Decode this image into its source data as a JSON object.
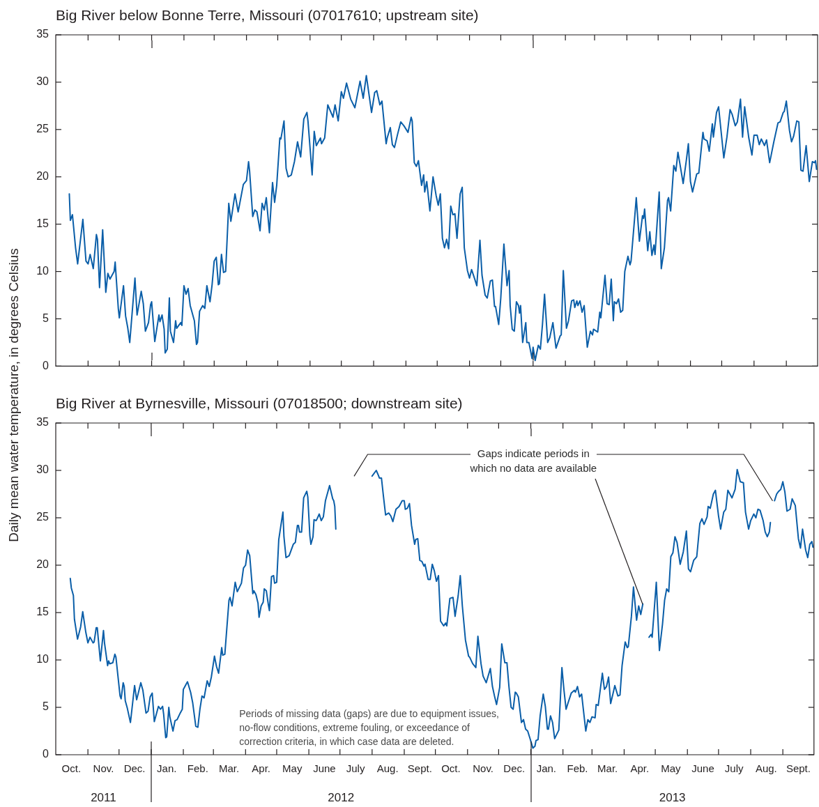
{
  "chart_data": [
    {
      "type": "line",
      "title": "Big River below Bonne Terre, Missouri (07017610; upstream site)",
      "ylabel": "Daily mean water temperature, in degrees Celsius",
      "color": "#0a5ea8",
      "tick_labels": "y",
      "xlim": [
        "2011-10-01",
        "2013-10-01"
      ],
      "xticks": [
        {
          "value": "2011-11-01",
          "label": null
        },
        {
          "value": "2011-12-01",
          "label": null
        },
        {
          "value": "2012-01-01",
          "label": null
        },
        {
          "value": "2012-02-01",
          "label": null
        },
        {
          "value": "2012-03-01",
          "label": null
        },
        {
          "value": "2012-04-01",
          "label": null
        },
        {
          "value": "2012-05-01",
          "label": null
        },
        {
          "value": "2012-06-01",
          "label": null
        },
        {
          "value": "2012-07-01",
          "label": null
        },
        {
          "value": "2012-08-01",
          "label": null
        },
        {
          "value": "2012-09-01",
          "label": null
        },
        {
          "value": "2012-10-01",
          "label": null
        },
        {
          "value": "2012-11-01",
          "label": null
        },
        {
          "value": "2012-12-01",
          "label": null
        },
        {
          "value": "2013-01-01",
          "label": null
        },
        {
          "value": "2013-02-01",
          "label": null
        },
        {
          "value": "2013-03-01",
          "label": null
        },
        {
          "value": "2013-04-01",
          "label": null
        },
        {
          "value": "2013-05-01",
          "label": null
        },
        {
          "value": "2013-06-01",
          "label": null
        },
        {
          "value": "2013-07-01",
          "label": null
        },
        {
          "value": "2013-08-01",
          "label": null
        },
        {
          "value": "2013-09-01",
          "label": null
        }
      ],
      "ylim": [
        0,
        35
      ],
      "yticks": [
        0,
        5,
        10,
        15,
        20,
        25,
        30,
        35
      ],
      "x": [
        "2011-10-14",
        "2011-10-15",
        "2011-10-17",
        "2011-10-20",
        "2011-10-22",
        "2011-10-27",
        "2011-10-30",
        "2011-11-01",
        "2011-11-03",
        "2011-11-06",
        "2011-11-09",
        "2011-11-10",
        "2011-11-12",
        "2011-11-15",
        "2011-11-18",
        "2011-11-20",
        "2011-11-22",
        "2011-11-26",
        "2011-11-27",
        "2011-11-30",
        "2011-12-01",
        "2011-12-05",
        "2011-12-07",
        "2011-12-09",
        "2011-12-11",
        "2011-12-16",
        "2011-12-18",
        "2011-12-22",
        "2011-12-24",
        "2011-12-26",
        "2011-12-29",
        "2011-12-31",
        "2012-01-01",
        "2012-01-04",
        "2012-01-08",
        "2012-01-09",
        "2012-01-11",
        "2012-01-13",
        "2012-01-14",
        "2012-01-16",
        "2012-01-18",
        "2012-01-19",
        "2012-01-22",
        "2012-01-24",
        "2012-01-25",
        "2012-01-29",
        "2012-01-30",
        "2012-02-01",
        "2012-02-03",
        "2012-02-05",
        "2012-02-07",
        "2012-02-11",
        "2012-02-13",
        "2012-02-14",
        "2012-02-16",
        "2012-02-19",
        "2012-02-21",
        "2012-02-23",
        "2012-02-26",
        "2012-02-28",
        "2012-03-01",
        "2012-03-03",
        "2012-03-05",
        "2012-03-06",
        "2012-03-08",
        "2012-03-10",
        "2012-03-12",
        "2012-03-15",
        "2012-03-17",
        "2012-03-21",
        "2012-03-24",
        "2012-03-29",
        "2012-04-01",
        "2012-04-03",
        "2012-04-04",
        "2012-04-07",
        "2012-04-09",
        "2012-04-11",
        "2012-04-14",
        "2012-04-16",
        "2012-04-18",
        "2012-04-20",
        "2012-04-23",
        "2012-04-26",
        "2012-04-28",
        "2012-04-30",
        "2012-05-03",
        "2012-05-04",
        "2012-05-07",
        "2012-05-09",
        "2012-05-11",
        "2012-05-14",
        "2012-05-17",
        "2012-05-20",
        "2012-05-23",
        "2012-05-26",
        "2012-05-29",
        "2012-05-30",
        "2012-06-03",
        "2012-06-05",
        "2012-06-07",
        "2012-06-11",
        "2012-06-12",
        "2012-06-15",
        "2012-06-18",
        "2012-06-23",
        "2012-06-25",
        "2012-06-28",
        "2012-07-01",
        "2012-07-03",
        "2012-07-06",
        "2012-07-10",
        "2012-07-14",
        "2012-07-19",
        "2012-07-22",
        "2012-07-25",
        "2012-07-30",
        "2012-08-02",
        "2012-08-04",
        "2012-08-07",
        "2012-08-09",
        "2012-08-13",
        "2012-08-14",
        "2012-08-17",
        "2012-08-19",
        "2012-08-21",
        "2012-08-24",
        "2012-08-27",
        "2012-08-30",
        "2012-09-03",
        "2012-09-06",
        "2012-09-07",
        "2012-09-09",
        "2012-09-11",
        "2012-09-13",
        "2012-09-16",
        "2012-09-18",
        "2012-09-19",
        "2012-09-21",
        "2012-09-24",
        "2012-09-27",
        "2012-09-30",
        "2012-10-02",
        "2012-10-04",
        "2012-10-06",
        "2012-10-08",
        "2012-10-10",
        "2012-10-12",
        "2012-10-14",
        "2012-10-16",
        "2012-10-18",
        "2012-10-20",
        "2012-10-23",
        "2012-10-25",
        "2012-10-27",
        "2012-10-30",
        "2012-11-01",
        "2012-11-03",
        "2012-11-06",
        "2012-11-08",
        "2012-11-11",
        "2012-11-13",
        "2012-11-16",
        "2012-11-18",
        "2012-11-21",
        "2012-11-23",
        "2012-11-25",
        "2012-11-26",
        "2012-11-29",
        "2012-12-01",
        "2012-12-04",
        "2012-12-07",
        "2012-12-09",
        "2012-12-10",
        "2012-12-12",
        "2012-12-14",
        "2012-12-16",
        "2012-12-18",
        "2012-12-19",
        "2012-12-20",
        "2012-12-22",
        "2012-12-25",
        "2012-12-26",
        "2012-12-28",
        "2012-12-31",
        "2013-01-01",
        "2013-01-03",
        "2013-01-06",
        "2013-01-08",
        "2013-01-10",
        "2013-01-12",
        "2013-01-15",
        "2013-01-17",
        "2013-01-20",
        "2013-01-23",
        "2013-01-27",
        "2013-01-28",
        "2013-01-30",
        "2013-02-02",
        "2013-02-04",
        "2013-02-07",
        "2013-02-09",
        "2013-02-10",
        "2013-02-12",
        "2013-02-13",
        "2013-02-15",
        "2013-02-17",
        "2013-02-19",
        "2013-02-22",
        "2013-02-25",
        "2013-02-27",
        "2013-02-28",
        "2013-03-04",
        "2013-03-06",
        "2013-03-07",
        "2013-03-11",
        "2013-03-13",
        "2013-03-15",
        "2013-03-17",
        "2013-03-19",
        "2013-03-20",
        "2013-03-22",
        "2013-03-24",
        "2013-03-26",
        "2013-03-28",
        "2013-03-30",
        "2013-04-02",
        "2013-04-04",
        "2013-04-05",
        "2013-04-09",
        "2013-04-10",
        "2013-04-13",
        "2013-04-16",
        "2013-04-17",
        "2013-04-18",
        "2013-04-21",
        "2013-04-23",
        "2013-04-25",
        "2013-04-27",
        "2013-04-28",
        "2013-05-02",
        "2013-05-04",
        "2013-05-07",
        "2013-05-10",
        "2013-05-11",
        "2013-05-13",
        "2013-05-16",
        "2013-05-18",
        "2013-05-20",
        "2013-05-22",
        "2013-05-25",
        "2013-05-28",
        "2013-05-30",
        "2013-06-01",
        "2013-06-03",
        "2013-06-07",
        "2013-06-09",
        "2013-06-13",
        "2013-06-14",
        "2013-06-17",
        "2013-06-19",
        "2013-06-22",
        "2013-06-23",
        "2013-06-26",
        "2013-06-28",
        "2013-07-03",
        "2013-07-06",
        "2013-07-09",
        "2013-07-11",
        "2013-07-14",
        "2013-07-16",
        "2013-07-19",
        "2013-07-21",
        "2013-07-23",
        "2013-07-27",
        "2013-07-30",
        "2013-08-01",
        "2013-08-04",
        "2013-08-06",
        "2013-08-08",
        "2013-08-11",
        "2013-08-13",
        "2013-08-16",
        "2013-08-20",
        "2013-08-24",
        "2013-08-26",
        "2013-08-29",
        "2013-08-30",
        "2013-09-01",
        "2013-09-04",
        "2013-09-06",
        "2013-09-08",
        "2013-09-11",
        "2013-09-13",
        "2013-09-15",
        "2013-09-17",
        "2013-09-20",
        "2013-09-23",
        "2013-09-26",
        "2013-09-28",
        "2013-09-29",
        "2013-09-30"
      ],
      "values": [
        18.2,
        15.4,
        16,
        12.5,
        10.8,
        15.5,
        11.1,
        10.8,
        11.8,
        10.3,
        13.9,
        13.4,
        8.3,
        14.4,
        7.8,
        9.8,
        9.2,
        10,
        11,
        6.1,
        5.1,
        8.5,
        5.3,
        4.1,
        2.5,
        9.3,
        5.4,
        7.9,
        6.6,
        3.7,
        4.6,
        6.5,
        6.8,
        2.6,
        5.4,
        4.7,
        5.4,
        3.9,
        1.4,
        1.8,
        7.2,
        3.7,
        2.5,
        4.8,
        4,
        4.6,
        4.3,
        8.5,
        7.6,
        8.2,
        6.4,
        4.8,
        2.3,
        2.5,
        5.8,
        6.4,
        6.1,
        8.5,
        6.8,
        8.6,
        11.1,
        11.5,
        8.6,
        8.7,
        11.8,
        9.9,
        10,
        17.2,
        15.3,
        18.2,
        16.3,
        19.2,
        19.6,
        21.6,
        20.6,
        15.8,
        16.5,
        16.3,
        14.3,
        17.2,
        16.5,
        17.8,
        14.1,
        19.4,
        17.3,
        19.1,
        24.1,
        24,
        25.9,
        20.9,
        20,
        20.2,
        21.6,
        23.7,
        22.1,
        26.1,
        26.8,
        25.9,
        20.2,
        24.8,
        23.3,
        24.1,
        23.5,
        24.1,
        27.6,
        26.3,
        27.6,
        25.9,
        29,
        28.3,
        29.9,
        28.2,
        27.3,
        30.1,
        28.3,
        30.7,
        26.8,
        28.9,
        29.1,
        27.6,
        28,
        23.5,
        24.1,
        25.2,
        23.4,
        23.1,
        24.5,
        25.8,
        25.4,
        24.7,
        26.3,
        25.9,
        21.5,
        21.1,
        21.7,
        19.1,
        20.2,
        18.4,
        19.5,
        16.4,
        20,
        18,
        17,
        18.2,
        13.5,
        12.5,
        13.4,
        12.4,
        16.9,
        16,
        16.1,
        13.5,
        18.2,
        18.9,
        12.5,
        10.1,
        9.3,
        10.2,
        9.2,
        8.5,
        13.3,
        9.6,
        7.5,
        7.2,
        9,
        9.1,
        6.3,
        6.3,
        4.4,
        7.2,
        12.9,
        8.5,
        10.1,
        6.4,
        3.9,
        3.7,
        6.8,
        6.4,
        5.6,
        6.4,
        2.5,
        4.6,
        2.5,
        2.5,
        0.8,
        2,
        0.6,
        2.2,
        1.8,
        4.4,
        7.6,
        2.5,
        3,
        4.6,
        1.9,
        3.2,
        3.3,
        10.1,
        4,
        4.8,
        6.9,
        7,
        6.2,
        6.9,
        6.4,
        6.9,
        5.7,
        6.4,
        2,
        3.7,
        3.3,
        3.9,
        3.6,
        5.7,
        5.1,
        9.6,
        6.6,
        6.5,
        9.2,
        4.8,
        6.8,
        6.6,
        7.1,
        5.7,
        5.9,
        10,
        11.6,
        10.7,
        11.1,
        16.4,
        17.8,
        13.2,
        15.9,
        15.6,
        16.6,
        12.2,
        14.2,
        11.7,
        12.8,
        11.8,
        18.4,
        10.3,
        12.5,
        17.5,
        17.8,
        16.4,
        21.2,
        20.6,
        22.6,
        21.3,
        19.3,
        21.7,
        23.5,
        19.5,
        18.4,
        20.3,
        20.4,
        24.7,
        24,
        23.8,
        22.7,
        25.6,
        24.2,
        26.8,
        27.4,
        22,
        24.2,
        27.1,
        26.6,
        25.4,
        25.8,
        28.2,
        24.2,
        27.4,
        24.1,
        22.3,
        24.4,
        24.4,
        23.4,
        24,
        23.3,
        23.9,
        21.5,
        23.7,
        25.7,
        25.8,
        26.8,
        26.9,
        28,
        24.9,
        23.7,
        24.3,
        25.9,
        25.8,
        20.7,
        20.6,
        23.3,
        19.5,
        21.6,
        21.5,
        21.7,
        20.8
      ]
    },
    {
      "type": "line",
      "title": "Big River at Byrnesville, Missouri (07018500; downstream site)",
      "color": "#0a5ea8",
      "xlim": [
        "2011-10-01",
        "2013-10-01"
      ],
      "xticks": [
        {
          "value": "2011-10-16",
          "label": "Oct."
        },
        {
          "value": "2011-11-01",
          "label": null
        },
        {
          "value": "2011-11-16",
          "label": "Nov."
        },
        {
          "value": "2011-12-01",
          "label": null
        },
        {
          "value": "2011-12-16",
          "label": "Dec."
        },
        {
          "value": "2012-01-01",
          "label": null
        },
        {
          "value": "2012-01-16",
          "label": "Jan."
        },
        {
          "value": "2012-02-01",
          "label": null
        },
        {
          "value": "2012-02-15",
          "label": "Feb."
        },
        {
          "value": "2012-03-01",
          "label": null
        },
        {
          "value": "2012-03-16",
          "label": "Mar."
        },
        {
          "value": "2012-04-01",
          "label": null
        },
        {
          "value": "2012-04-16",
          "label": "Apr."
        },
        {
          "value": "2012-05-01",
          "label": null
        },
        {
          "value": "2012-05-16",
          "label": "May"
        },
        {
          "value": "2012-06-01",
          "label": null
        },
        {
          "value": "2012-06-16",
          "label": "June"
        },
        {
          "value": "2012-07-01",
          "label": null
        },
        {
          "value": "2012-07-16",
          "label": "July"
        },
        {
          "value": "2012-08-01",
          "label": null
        },
        {
          "value": "2012-08-16",
          "label": "Aug."
        },
        {
          "value": "2012-09-01",
          "label": null
        },
        {
          "value": "2012-09-16",
          "label": "Sept."
        },
        {
          "value": "2012-10-01",
          "label": null
        },
        {
          "value": "2012-10-16",
          "label": "Oct."
        },
        {
          "value": "2012-11-01",
          "label": null
        },
        {
          "value": "2012-11-16",
          "label": "Nov."
        },
        {
          "value": "2012-12-01",
          "label": null
        },
        {
          "value": "2012-12-16",
          "label": "Dec."
        },
        {
          "value": "2013-01-01",
          "label": null
        },
        {
          "value": "2013-01-16",
          "label": "Jan."
        },
        {
          "value": "2013-02-01",
          "label": null
        },
        {
          "value": "2013-02-15",
          "label": "Feb."
        },
        {
          "value": "2013-03-01",
          "label": null
        },
        {
          "value": "2013-03-16",
          "label": "Mar."
        },
        {
          "value": "2013-04-01",
          "label": null
        },
        {
          "value": "2013-04-16",
          "label": "Apr."
        },
        {
          "value": "2013-05-01",
          "label": null
        },
        {
          "value": "2013-05-16",
          "label": "May"
        },
        {
          "value": "2013-06-01",
          "label": null
        },
        {
          "value": "2013-06-16",
          "label": "June"
        },
        {
          "value": "2013-07-01",
          "label": null
        },
        {
          "value": "2013-07-16",
          "label": "July"
        },
        {
          "value": "2013-08-01",
          "label": null
        },
        {
          "value": "2013-08-16",
          "label": "Aug."
        },
        {
          "value": "2013-09-01",
          "label": null
        },
        {
          "value": "2013-09-16",
          "label": "Sept."
        }
      ],
      "ylim": [
        0,
        35
      ],
      "yticks": [
        0,
        5,
        10,
        15,
        20,
        25,
        30,
        35
      ],
      "annotations": [
        {
          "text": "Gaps indicate periods in which no data are available",
          "x": "2013-04-19",
          "y": 15.9
        },
        "Periods of missing data (gaps) are due to equipment issues, no-flow conditions, extreme fouling, or exceedance of correction criteria, in which case data are deleted.",
        "2011",
        "2012",
        "2013"
      ],
      "x": [
        "2011-10-15",
        "2011-10-16",
        "2011-10-18",
        "2011-10-19",
        "2011-10-22",
        "2011-10-25",
        "2011-10-27",
        "2011-10-30",
        "2011-11-01",
        "2011-11-03",
        "2011-11-06",
        "2011-11-07",
        "2011-11-09",
        "2011-11-10",
        "2011-11-13",
        "2011-11-16",
        "2011-11-17",
        "2011-11-20",
        "2011-11-21",
        "2011-11-22",
        "2011-11-25",
        "2011-11-27",
        "2011-11-28",
        "2011-12-02",
        "2011-12-03",
        "2011-12-05",
        "2011-12-06",
        "2011-12-07",
        "2011-12-09",
        "2011-12-12",
        "2011-12-16",
        "2011-12-18",
        "2011-12-22",
        "2011-12-24",
        "2011-12-27",
        "2011-12-29",
        "2011-12-31",
        "2012-01-02",
        "2012-01-04",
        "2012-01-08",
        "2012-01-10",
        "2012-01-12",
        "2012-01-13",
        "2012-01-15",
        "2012-01-16",
        "2012-01-18",
        "2012-01-19",
        "2012-01-22",
        "2012-01-24",
        "2012-01-26",
        "2012-01-29",
        "2012-01-31",
        "2012-02-01",
        "2012-02-03",
        "2012-02-05",
        "2012-02-08",
        "2012-02-10",
        "2012-02-13",
        "2012-02-15",
        "2012-02-17",
        "2012-02-19",
        "2012-02-21",
        "2012-02-24",
        "2012-02-26",
        "2012-02-28",
        "2012-03-02",
        "2012-03-04",
        "2012-03-06",
        "2012-03-09",
        "2012-03-10",
        "2012-03-12",
        "2012-03-16",
        "2012-03-17",
        "2012-03-19",
        "2012-03-22",
        "2012-03-24",
        "2012-03-28",
        "2012-03-30",
        "2012-04-01",
        "2012-04-03",
        "2012-04-05",
        "2012-04-08",
        "2012-04-09",
        "2012-04-11",
        "2012-04-13",
        "2012-04-14",
        "2012-04-16",
        "2012-04-18",
        "2012-04-19",
        "2012-04-21",
        "2012-04-23",
        "2012-04-24",
        "2012-04-26",
        "2012-04-28",
        "2012-04-29",
        "2012-05-01",
        "2012-05-03",
        "2012-05-07",
        "2012-05-08",
        "2012-05-10",
        "2012-05-13",
        "2012-05-14",
        "2012-05-17",
        "2012-05-19",
        "2012-05-21",
        "2012-05-22",
        "2012-05-23",
        "2012-05-25",
        "2012-05-27",
        "2012-05-30",
        "2012-05-31",
        "2012-06-02",
        "2012-06-03",
        "2012-06-05",
        "2012-06-06",
        "2012-06-08",
        "2012-06-09",
        "2012-06-11",
        "2012-06-13",
        "2012-06-15",
        "2012-06-17",
        "2012-06-21",
        "2012-06-24",
        "2012-06-25",
        "2012-06-26",
        "2012-06-27",
        "2012-07-15",
        "2012-08-01",
        "2012-08-05",
        "2012-08-07",
        "2012-08-08",
        "2012-08-10",
        "2012-08-12",
        "2012-08-14",
        "2012-08-17",
        "2012-08-19",
        "2012-08-21",
        "2012-08-24",
        "2012-08-27",
        "2012-08-30",
        "2012-09-01",
        "2012-09-02",
        "2012-09-04",
        "2012-09-06",
        "2012-09-08",
        "2012-09-11",
        "2012-09-12",
        "2012-09-14",
        "2012-09-16",
        "2012-09-18",
        "2012-09-20",
        "2012-09-21",
        "2012-09-24",
        "2012-09-26",
        "2012-09-28",
        "2012-09-30",
        "2012-10-02",
        "2012-10-04",
        "2012-10-06",
        "2012-10-09",
        "2012-10-11",
        "2012-10-12",
        "2012-10-15",
        "2012-10-18",
        "2012-10-20",
        "2012-10-23",
        "2012-10-25",
        "2012-10-27",
        "2012-10-30",
        "2012-11-02",
        "2012-11-03",
        "2012-11-06",
        "2012-11-09",
        "2012-11-11",
        "2012-11-14",
        "2012-11-16",
        "2012-11-19",
        "2012-11-23",
        "2012-11-25",
        "2012-11-27",
        "2012-11-29",
        "2012-12-02",
        "2012-12-04",
        "2012-12-07",
        "2012-12-09",
        "2012-12-11",
        "2012-12-13",
        "2012-12-15",
        "2012-12-17",
        "2012-12-18",
        "2012-12-20",
        "2012-12-23",
        "2012-12-25",
        "2012-12-27",
        "2012-12-29",
        "2012-12-31",
        "2013-01-03",
        "2013-01-05",
        "2013-01-06",
        "2013-01-08",
        "2013-01-10",
        "2013-01-13",
        "2013-01-15",
        "2013-01-17",
        "2013-01-18",
        "2013-01-20",
        "2013-01-22",
        "2013-01-24",
        "2013-01-28",
        "2013-01-31",
        "2013-02-02",
        "2013-02-04",
        "2013-02-06",
        "2013-02-09",
        "2013-02-10",
        "2013-02-12",
        "2013-02-13",
        "2013-02-15",
        "2013-02-17",
        "2013-02-19",
        "2013-02-23",
        "2013-02-25",
        "2013-02-27",
        "2013-03-01",
        "2013-03-04",
        "2013-03-05",
        "2013-03-07",
        "2013-03-11",
        "2013-03-13",
        "2013-03-15",
        "2013-03-17",
        "2013-03-19",
        "2013-03-22",
        "2013-03-23",
        "2013-03-26",
        "2013-03-28",
        "2013-03-30",
        "2013-04-02",
        "2013-04-04",
        "2013-04-05",
        "2013-04-08",
        "2013-04-10",
        "2013-04-13",
        "2013-04-15",
        "2013-04-17",
        "2013-04-19",
        "2013-04-22",
        "2013-04-25",
        "2013-04-27",
        "2013-04-28",
        "2013-05-02",
        "2013-05-05",
        "2013-05-08",
        "2013-05-10",
        "2013-05-12",
        "2013-05-14",
        "2013-05-16",
        "2013-05-18",
        "2013-05-20",
        "2013-05-22",
        "2013-05-25",
        "2013-05-28",
        "2013-05-31",
        "2013-06-02",
        "2013-06-04",
        "2013-06-07",
        "2013-06-10",
        "2013-06-13",
        "2013-06-15",
        "2013-06-17",
        "2013-06-20",
        "2013-06-21",
        "2013-06-23",
        "2013-06-26",
        "2013-06-28",
        "2013-07-01",
        "2013-07-03",
        "2013-07-06",
        "2013-07-08",
        "2013-07-10",
        "2013-07-12",
        "2013-07-14",
        "2013-07-17",
        "2013-07-19",
        "2013-07-22",
        "2013-07-25",
        "2013-07-27",
        "2013-07-30",
        "2013-08-01",
        "2013-08-04",
        "2013-08-06",
        "2013-08-08",
        "2013-08-10",
        "2013-08-13",
        "2013-08-15",
        "2013-08-17",
        "2013-08-19",
        "2013-08-20",
        "2013-08-22",
        "2013-08-24",
        "2013-08-26",
        "2013-08-28",
        "2013-08-30",
        "2013-09-01",
        "2013-09-03",
        "2013-09-05",
        "2013-09-08",
        "2013-09-10",
        "2013-09-13",
        "2013-09-16",
        "2013-09-18",
        "2013-09-20",
        "2013-09-23",
        "2013-09-25",
        "2013-09-27",
        "2013-09-29",
        "2013-09-30"
      ],
      "values": [
        18.6,
        17.6,
        16.8,
        14.3,
        12.2,
        13.5,
        15.1,
        12.9,
        11.8,
        12.4,
        11.8,
        11.9,
        13.4,
        13.4,
        9.9,
        13.1,
        11.8,
        9.4,
        9.9,
        9.6,
        9.7,
        10.6,
        10.3,
        6.2,
        5.9,
        7.6,
        7.2,
        5.7,
        4.9,
        3.4,
        7.3,
        5.8,
        7.6,
        6.8,
        4.4,
        4.6,
        6.1,
        6.5,
        3.5,
        5.1,
        4.8,
        5.1,
        4.3,
        1.8,
        1.9,
        5,
        4,
        2.5,
        3.6,
        3.7,
        4.4,
        4.8,
        6.9,
        7.3,
        7.7,
        6.6,
        5.5,
        3,
        2.9,
        4.8,
        6.2,
        6,
        7.8,
        7.2,
        8.2,
        10.4,
        9.3,
        8.6,
        11.3,
        10.5,
        10.6,
        16.3,
        16.6,
        15.7,
        18.2,
        17.2,
        18.1,
        19.7,
        20,
        21.6,
        21,
        17,
        17.3,
        16.9,
        16,
        14.5,
        15.7,
        16.1,
        17.5,
        17.3,
        15.8,
        15.2,
        18.8,
        18.9,
        18.1,
        18.2,
        22.7,
        25.6,
        23,
        20.8,
        21,
        21.3,
        22.2,
        22.4,
        24.2,
        24.2,
        23.5,
        23.5,
        27.1,
        27.8,
        27.2,
        23.1,
        22.2,
        23,
        24.8,
        24.7,
        24.9,
        25.4,
        24.7,
        25.1,
        26.8,
        28.4,
        27,
        26.8,
        26.2,
        23.8,
        null,
        29.4,
        30,
        29.5,
        29.2,
        29.2,
        27.2,
        25.3,
        25.5,
        25.2,
        24.6,
        25.9,
        26.2,
        26.8,
        26.8,
        25.9,
        26,
        26.5,
        24.2,
        22.2,
        22.7,
        22.8,
        20.5,
        20.4,
        19.9,
        20.1,
        18.5,
        18.5,
        20.1,
        19.4,
        18.3,
        18.9,
        14.1,
        13.6,
        13.9,
        13.6,
        16.5,
        16.6,
        14.6,
        16.8,
        18.9,
        15.7,
        12.1,
        10.4,
        10.3,
        9.6,
        9.2,
        12.5,
        9.6,
        8.3,
        7.6,
        9.1,
        7.2,
        6.2,
        5.3,
        7.1,
        11.7,
        9.7,
        9.7,
        7.1,
        5,
        4.8,
        6.6,
        6.5,
        6.1,
        3.4,
        3.7,
        2.7,
        2.5,
        1.8,
        0.7,
        0.9,
        1.5,
        1.6,
        4.1,
        6.4,
        5.1,
        2.7,
        2.7,
        4.1,
        3.4,
        1.7,
        2.6,
        9.2,
        6.8,
        4.8,
        5.5,
        6.5,
        6.6,
        6.8,
        6.6,
        7.2,
        6.1,
        6.4,
        2.5,
        3.7,
        3.4,
        4,
        3.9,
        5.3,
        5.2,
        8.6,
        6.9,
        7.2,
        8.2,
        5.4,
        6.8,
        7.3,
        6.2,
        6.3,
        9.4,
        11.9,
        11.3,
        11.4,
        14.6,
        17.7,
        14.2,
        15.7,
        14.8,
        15.9,
        null,
        12.4,
        12.7,
        12.4,
        18.2,
        11,
        13.8,
        16.3,
        17.5,
        17.2,
        20.9,
        21.3,
        23,
        22.4,
        20.1,
        21.4,
        23.6,
        19.6,
        19.3,
        20.5,
        20.9,
        24.4,
        24.9,
        24.3,
        25.1,
        26.2,
        26,
        27.5,
        27.9,
        25.2,
        23.8,
        25.6,
        25.9,
        27.9,
        27.5,
        27.1,
        28,
        30.1,
        28.8,
        28.7,
        25.6,
        23.8,
        24.7,
        25.4,
        25,
        25.9,
        25.8,
        24.7,
        23.5,
        23,
        23.5,
        24.5,
        null,
        26.8,
        27.5,
        27.8,
        28,
        28.8,
        27.7,
        25.7,
        25.9,
        27,
        26.3,
        22.8,
        21.8,
        23.8,
        21.6,
        20.8,
        22.2,
        22.5,
        21.9
      ]
    }
  ]
}
